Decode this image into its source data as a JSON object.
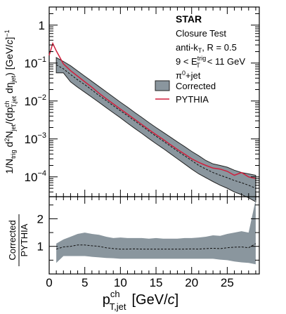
{
  "chart_data": [
    {
      "type": "line",
      "panel": "top",
      "scale": "log",
      "ylabel": "1/N_trig d²N_jet/(dp^ch_T,jet dη_jet) [GeV/c]⁻¹",
      "ylim": [
        3e-05,
        3
      ],
      "xlim": [
        0,
        29.5
      ],
      "y_ticks": [
        {
          "v": 1,
          "m": "1",
          "e": ""
        },
        {
          "v": 0.1,
          "m": "10",
          "e": "−1"
        },
        {
          "v": 0.01,
          "m": "10",
          "e": "−2"
        },
        {
          "v": 0.001,
          "m": "10",
          "e": "−3"
        },
        {
          "v": 0.0001,
          "m": "10",
          "e": "−4"
        }
      ],
      "annotations": {
        "experiment": "STAR",
        "line1": "Closure Test",
        "line2": "anti-kT, R = 0.5",
        "line3": "9 < E_T^trig < 11 GeV",
        "line4": "π⁰+jet"
      },
      "legend": {
        "position": "top-right",
        "entries": [
          {
            "label": "Corrected",
            "color": "#8a969e",
            "style": "band"
          },
          {
            "label": "PYTHIA",
            "color": "#d11f3c",
            "style": "line"
          }
        ]
      },
      "x": [
        1,
        2,
        3,
        4,
        5,
        6,
        7,
        8,
        9,
        10,
        11,
        12,
        13,
        14,
        15,
        16,
        17,
        18,
        19,
        20,
        21,
        22,
        23,
        24,
        25,
        26,
        27,
        28,
        29
      ],
      "series": [
        {
          "name": "Corrected",
          "central": [
            0.09,
            0.07,
            0.05,
            0.036,
            0.027,
            0.0195,
            0.014,
            0.0103,
            0.0075,
            0.0055,
            0.0041,
            0.003,
            0.0022,
            0.0016,
            0.00118,
            0.00088,
            0.00065,
            0.00048,
            0.00036,
            0.00027,
            0.0002,
            0.00016,
            0.00013,
            0.00011,
            9.5e-05,
            8e-05,
            7e-05,
            6e-05,
            5e-05
          ],
          "upper": [
            0.14,
            0.11,
            0.085,
            0.062,
            0.045,
            0.033,
            0.024,
            0.0175,
            0.0128,
            0.0093,
            0.0069,
            0.005,
            0.0037,
            0.0027,
            0.002,
            0.0015,
            0.00112,
            0.00084,
            0.00063,
            0.00047,
            0.00036,
            0.00027,
            0.00022,
            0.0002,
            0.00018,
            0.00015,
            0.00013,
            0.00012,
            0.00011
          ],
          "lower": [
            0.055,
            0.055,
            0.032,
            0.023,
            0.017,
            0.0125,
            0.0092,
            0.0067,
            0.0049,
            0.0036,
            0.0026,
            0.0019,
            0.0014,
            0.00102,
            0.00075,
            0.00056,
            0.00041,
            0.0003,
            0.00022,
            0.00016,
            0.00012,
            9.5e-05,
            7.5e-05,
            6e-05,
            5e-05,
            4e-05,
            3.4e-05,
            2.8e-05,
            2.2e-05
          ]
        },
        {
          "name": "PYTHIA",
          "x": [
            0,
            0.5,
            1,
            2,
            3,
            4,
            5,
            6,
            7,
            8,
            9,
            10,
            11,
            12,
            13,
            14,
            15,
            16,
            17,
            18,
            19,
            20,
            21,
            22,
            23,
            24,
            25,
            26,
            27,
            28,
            29
          ],
          "values": [
            0.16,
            0.33,
            0.21,
            0.095,
            0.063,
            0.045,
            0.032,
            0.023,
            0.016,
            0.0115,
            0.0084,
            0.0061,
            0.0045,
            0.0033,
            0.0024,
            0.00175,
            0.0013,
            0.00097,
            0.00071,
            0.00053,
            0.0004,
            0.0003,
            0.00024,
            0.0002,
            0.00017,
            0.00016,
            0.00014,
            0.00011,
            0.00013,
            0.0001,
            9e-05
          ]
        }
      ]
    },
    {
      "type": "line",
      "panel": "bottom",
      "ylabel": "Corrected / PYTHIA",
      "ylabel_num": "Corrected",
      "ylabel_den": "PYTHIA",
      "xlabel": "p^ch_T,jet [GeV/c]",
      "xlabel_main": "p",
      "xlabel_sup": "ch",
      "xlabel_sub": "T,jet",
      "xlabel_unit": "[GeV/c]",
      "ylim": [
        0,
        2.8
      ],
      "xlim": [
        0,
        29.5
      ],
      "x_ticks": [
        0,
        5,
        10,
        15,
        20,
        25
      ],
      "y_ticks": [
        1,
        2
      ],
      "x": [
        1,
        2,
        3,
        4,
        5,
        6,
        7,
        8,
        9,
        10,
        11,
        12,
        13,
        14,
        15,
        16,
        17,
        18,
        19,
        20,
        21,
        22,
        23,
        24,
        25,
        26,
        27,
        28,
        29
      ],
      "series": [
        {
          "name": "Corrected/PYTHIA",
          "central": [
            0.9,
            0.98,
            1.0,
            1.05,
            1.05,
            1.02,
            1.0,
            0.95,
            0.92,
            0.9,
            0.9,
            0.91,
            0.9,
            0.9,
            0.9,
            0.9,
            0.9,
            0.9,
            0.9,
            0.91,
            0.9,
            0.92,
            0.93,
            0.92,
            0.95,
            0.97,
            0.98,
            0.95,
            1.1
          ],
          "upper": [
            1.1,
            1.25,
            1.35,
            1.45,
            1.5,
            1.45,
            1.42,
            1.35,
            1.3,
            1.32,
            1.3,
            1.3,
            1.3,
            1.28,
            1.3,
            1.28,
            1.28,
            1.28,
            1.3,
            1.3,
            1.32,
            1.35,
            1.4,
            1.38,
            1.45,
            1.5,
            1.55,
            1.5,
            2.7
          ],
          "lower": [
            0.4,
            0.65,
            0.65,
            0.65,
            0.65,
            0.62,
            0.6,
            0.58,
            0.57,
            0.55,
            0.55,
            0.55,
            0.55,
            0.55,
            0.55,
            0.55,
            0.55,
            0.55,
            0.55,
            0.55,
            0.55,
            0.55,
            0.55,
            0.52,
            0.5,
            0.45,
            0.42,
            0.4,
            0.35
          ]
        }
      ]
    }
  ]
}
